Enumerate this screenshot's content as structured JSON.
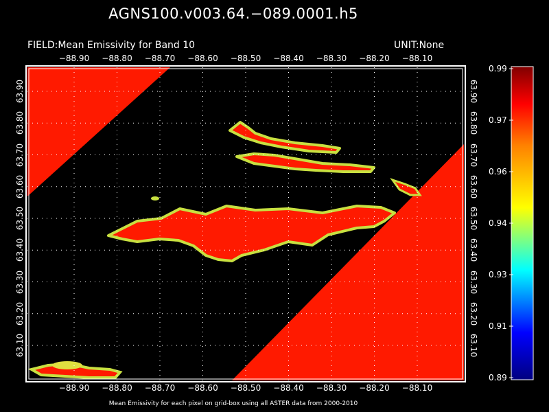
{
  "title": "AGNS100.v003.64.−089.0001.h5",
  "field_label": "FIELD:Mean Emissivity for Band 10",
  "unit_label": "UNIT:None",
  "footer_note": "Mean Emissivity for each pixel on grid-box using all ASTER data from 2000-2010",
  "lon_ticks": [
    {
      "label": "−88.90",
      "value": -88.9
    },
    {
      "label": "−88.80",
      "value": -88.8
    },
    {
      "label": "−88.70",
      "value": -88.7
    },
    {
      "label": "−88.60",
      "value": -88.6
    },
    {
      "label": "−88.50",
      "value": -88.5
    },
    {
      "label": "−88.40",
      "value": -88.4
    },
    {
      "label": "−88.30",
      "value": -88.3
    },
    {
      "label": "−88.20",
      "value": -88.2
    },
    {
      "label": "−88.10",
      "value": -88.1
    }
  ],
  "lat_ticks": [
    {
      "label": "63.90",
      "value": 63.9
    },
    {
      "label": "63.80",
      "value": 63.8
    },
    {
      "label": "63.70",
      "value": 63.7
    },
    {
      "label": "63.60",
      "value": 63.6
    },
    {
      "label": "63.50",
      "value": 63.5
    },
    {
      "label": "63.40",
      "value": 63.4
    },
    {
      "label": "63.30",
      "value": 63.3
    },
    {
      "label": "63.20",
      "value": 63.2
    },
    {
      "label": "63.10",
      "value": 63.1
    }
  ],
  "colorbar": {
    "ticks": [
      "0.99",
      "0.97",
      "0.96",
      "0.94",
      "0.93",
      "0.91",
      "0.89"
    ],
    "min": 0.89,
    "max": 0.99,
    "colors": [
      "#000080",
      "#0000ff",
      "#00ffff",
      "#ffff00",
      "#ff8000",
      "#ff0000",
      "#800000"
    ]
  },
  "map": {
    "background": "#000000",
    "fill_color": "#ff1a00",
    "edge_color_light": "#b8e848",
    "edge_color_yellow": "#f0e020",
    "grid_color": "#ffffff"
  }
}
